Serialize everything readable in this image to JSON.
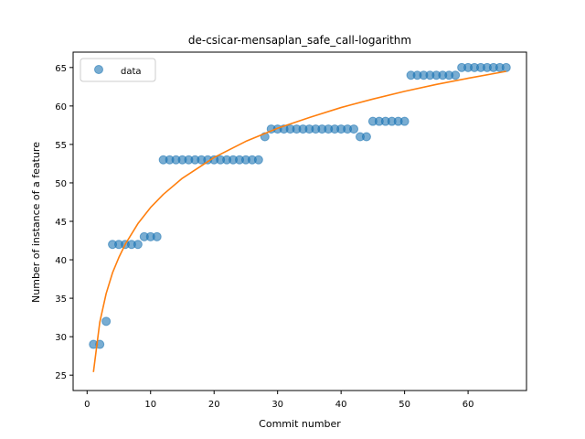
{
  "chart_data": {
    "type": "scatter",
    "title": "de-csicar-mensaplan_safe_call-logarithm",
    "xlabel": "Commit number",
    "ylabel": "Number of instance of a feature",
    "xlim": [
      -2.2,
      69.2
    ],
    "ylim": [
      23.0,
      67.0
    ],
    "xticks": [
      0,
      10,
      20,
      30,
      40,
      50,
      60
    ],
    "yticks": [
      25,
      30,
      35,
      40,
      45,
      50,
      55,
      60,
      65
    ],
    "grid": false,
    "legend": {
      "position": "top-left",
      "entries": [
        "data"
      ]
    },
    "colors": {
      "data": "#1f77b4",
      "fit": "#ff7f0e"
    },
    "series": [
      {
        "name": "data",
        "kind": "points",
        "x": [
          1,
          2,
          3,
          4,
          5,
          6,
          7,
          8,
          9,
          10,
          11,
          12,
          13,
          14,
          15,
          16,
          17,
          18,
          19,
          20,
          21,
          22,
          23,
          24,
          25,
          26,
          27,
          28,
          29,
          30,
          31,
          32,
          33,
          34,
          35,
          36,
          37,
          38,
          39,
          40,
          41,
          42,
          43,
          44,
          45,
          46,
          47,
          48,
          49,
          50,
          51,
          52,
          53,
          54,
          55,
          56,
          57,
          58,
          59,
          60,
          61,
          62,
          63,
          64,
          65,
          66
        ],
        "y": [
          29,
          29,
          32,
          42,
          42,
          42,
          42,
          42,
          43,
          43,
          43,
          53,
          53,
          53,
          53,
          53,
          53,
          53,
          53,
          53,
          53,
          53,
          53,
          53,
          53,
          53,
          53,
          56,
          57,
          57,
          57,
          57,
          57,
          57,
          57,
          57,
          57,
          57,
          57,
          57,
          57,
          57,
          56,
          56,
          58,
          58,
          58,
          58,
          58,
          58,
          64,
          64,
          64,
          64,
          64,
          64,
          64,
          64,
          65,
          65,
          65,
          65,
          65,
          65,
          65,
          65
        ]
      },
      {
        "kind": "line",
        "x": [
          1,
          2,
          3,
          4,
          5,
          6,
          8,
          10,
          12,
          15,
          20,
          25,
          30,
          35,
          40,
          45,
          50,
          55,
          60,
          66
        ],
        "y": [
          25.4,
          31.9,
          35.6,
          38.3,
          40.3,
          42.0,
          44.7,
          46.8,
          48.5,
          50.6,
          53.3,
          55.4,
          57.1,
          58.5,
          59.8,
          60.9,
          61.9,
          62.8,
          63.6,
          64.5
        ]
      }
    ]
  }
}
